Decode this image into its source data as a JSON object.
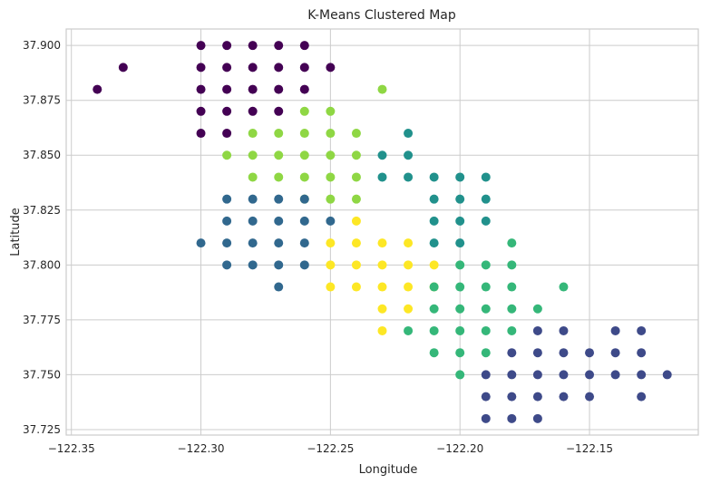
{
  "chart_data": {
    "type": "scatter",
    "title": "K-Means Clustered Map",
    "xlabel": "Longitude",
    "ylabel": "Latitude",
    "xlim": [
      -122.352,
      -122.108
    ],
    "ylim": [
      37.7225,
      37.9075
    ],
    "x_ticks": [
      -122.35,
      -122.3,
      -122.25,
      -122.2,
      -122.15
    ],
    "x_tick_labels": [
      "−122.35",
      "−122.30",
      "−122.25",
      "−122.20",
      "−122.15"
    ],
    "y_ticks": [
      37.725,
      37.75,
      37.775,
      37.8,
      37.825,
      37.85,
      37.875,
      37.9
    ],
    "y_tick_labels": [
      "37.725",
      "37.750",
      "37.775",
      "37.800",
      "37.825",
      "37.850",
      "37.875",
      "37.900"
    ],
    "grid": true,
    "colors": {
      "cluster_0": "#440154",
      "cluster_1": "#3e4a89",
      "cluster_2": "#31688e",
      "cluster_3": "#21918c",
      "cluster_4": "#35b779",
      "cluster_5": "#8fd744",
      "cluster_6": "#fde725",
      "grid": "#cccccc",
      "spine": "#cccccc",
      "text": "#262626"
    },
    "series": [
      {
        "color_key": "cluster_0",
        "points": [
          [
            -122.34,
            37.88
          ],
          [
            -122.33,
            37.89
          ],
          [
            -122.3,
            37.9
          ],
          [
            -122.29,
            37.9
          ],
          [
            -122.28,
            37.9
          ],
          [
            -122.27,
            37.9
          ],
          [
            -122.26,
            37.9
          ],
          [
            -122.3,
            37.89
          ],
          [
            -122.29,
            37.89
          ],
          [
            -122.28,
            37.89
          ],
          [
            -122.27,
            37.89
          ],
          [
            -122.26,
            37.89
          ],
          [
            -122.25,
            37.89
          ],
          [
            -122.3,
            37.88
          ],
          [
            -122.29,
            37.88
          ],
          [
            -122.28,
            37.88
          ],
          [
            -122.27,
            37.88
          ],
          [
            -122.26,
            37.88
          ],
          [
            -122.3,
            37.87
          ],
          [
            -122.29,
            37.87
          ],
          [
            -122.28,
            37.87
          ],
          [
            -122.27,
            37.87
          ],
          [
            -122.3,
            37.86
          ],
          [
            -122.29,
            37.86
          ]
        ]
      },
      {
        "color_key": "cluster_5",
        "points": [
          [
            -122.23,
            37.88
          ],
          [
            -122.26,
            37.87
          ],
          [
            -122.25,
            37.87
          ],
          [
            -122.28,
            37.86
          ],
          [
            -122.27,
            37.86
          ],
          [
            -122.26,
            37.86
          ],
          [
            -122.25,
            37.86
          ],
          [
            -122.24,
            37.86
          ],
          [
            -122.29,
            37.85
          ],
          [
            -122.28,
            37.85
          ],
          [
            -122.27,
            37.85
          ],
          [
            -122.26,
            37.85
          ],
          [
            -122.25,
            37.85
          ],
          [
            -122.24,
            37.85
          ],
          [
            -122.28,
            37.84
          ],
          [
            -122.27,
            37.84
          ],
          [
            -122.26,
            37.84
          ],
          [
            -122.25,
            37.84
          ],
          [
            -122.24,
            37.84
          ],
          [
            -122.26,
            37.83
          ],
          [
            -122.25,
            37.83
          ],
          [
            -122.24,
            37.83
          ]
        ]
      },
      {
        "color_key": "cluster_3",
        "points": [
          [
            -122.22,
            37.86
          ],
          [
            -122.23,
            37.85
          ],
          [
            -122.22,
            37.85
          ],
          [
            -122.23,
            37.84
          ],
          [
            -122.22,
            37.84
          ],
          [
            -122.21,
            37.84
          ],
          [
            -122.2,
            37.84
          ],
          [
            -122.19,
            37.84
          ],
          [
            -122.21,
            37.83
          ],
          [
            -122.2,
            37.83
          ],
          [
            -122.19,
            37.83
          ],
          [
            -122.21,
            37.82
          ],
          [
            -122.2,
            37.82
          ],
          [
            -122.19,
            37.82
          ],
          [
            -122.21,
            37.81
          ],
          [
            -122.2,
            37.81
          ]
        ]
      },
      {
        "color_key": "cluster_2",
        "points": [
          [
            -122.29,
            37.83
          ],
          [
            -122.28,
            37.83
          ],
          [
            -122.27,
            37.83
          ],
          [
            -122.26,
            37.83
          ],
          [
            -122.29,
            37.82
          ],
          [
            -122.28,
            37.82
          ],
          [
            -122.27,
            37.82
          ],
          [
            -122.26,
            37.82
          ],
          [
            -122.25,
            37.82
          ],
          [
            -122.3,
            37.81
          ],
          [
            -122.29,
            37.81
          ],
          [
            -122.28,
            37.81
          ],
          [
            -122.27,
            37.81
          ],
          [
            -122.26,
            37.81
          ],
          [
            -122.29,
            37.8
          ],
          [
            -122.28,
            37.8
          ],
          [
            -122.27,
            37.8
          ],
          [
            -122.26,
            37.8
          ],
          [
            -122.27,
            37.79
          ]
        ]
      },
      {
        "color_key": "cluster_6",
        "points": [
          [
            -122.24,
            37.82
          ],
          [
            -122.25,
            37.81
          ],
          [
            -122.24,
            37.81
          ],
          [
            -122.23,
            37.81
          ],
          [
            -122.22,
            37.81
          ],
          [
            -122.25,
            37.8
          ],
          [
            -122.24,
            37.8
          ],
          [
            -122.23,
            37.8
          ],
          [
            -122.22,
            37.8
          ],
          [
            -122.21,
            37.8
          ],
          [
            -122.25,
            37.79
          ],
          [
            -122.24,
            37.79
          ],
          [
            -122.23,
            37.79
          ],
          [
            -122.22,
            37.79
          ],
          [
            -122.21,
            37.79
          ],
          [
            -122.23,
            37.78
          ],
          [
            -122.22,
            37.78
          ],
          [
            -122.23,
            37.77
          ]
        ]
      },
      {
        "color_key": "cluster_4",
        "points": [
          [
            -122.18,
            37.81
          ],
          [
            -122.2,
            37.8
          ],
          [
            -122.19,
            37.8
          ],
          [
            -122.18,
            37.8
          ],
          [
            -122.21,
            37.79
          ],
          [
            -122.2,
            37.79
          ],
          [
            -122.19,
            37.79
          ],
          [
            -122.18,
            37.79
          ],
          [
            -122.16,
            37.79
          ],
          [
            -122.21,
            37.78
          ],
          [
            -122.2,
            37.78
          ],
          [
            -122.19,
            37.78
          ],
          [
            -122.18,
            37.78
          ],
          [
            -122.17,
            37.78
          ],
          [
            -122.22,
            37.77
          ],
          [
            -122.21,
            37.77
          ],
          [
            -122.2,
            37.77
          ],
          [
            -122.19,
            37.77
          ],
          [
            -122.18,
            37.77
          ],
          [
            -122.21,
            37.76
          ],
          [
            -122.2,
            37.76
          ],
          [
            -122.19,
            37.76
          ],
          [
            -122.2,
            37.75
          ]
        ]
      },
      {
        "color_key": "cluster_1",
        "points": [
          [
            -122.17,
            37.77
          ],
          [
            -122.16,
            37.77
          ],
          [
            -122.14,
            37.77
          ],
          [
            -122.13,
            37.77
          ],
          [
            -122.18,
            37.76
          ],
          [
            -122.17,
            37.76
          ],
          [
            -122.16,
            37.76
          ],
          [
            -122.15,
            37.76
          ],
          [
            -122.14,
            37.76
          ],
          [
            -122.13,
            37.76
          ],
          [
            -122.19,
            37.75
          ],
          [
            -122.18,
            37.75
          ],
          [
            -122.17,
            37.75
          ],
          [
            -122.16,
            37.75
          ],
          [
            -122.15,
            37.75
          ],
          [
            -122.14,
            37.75
          ],
          [
            -122.13,
            37.75
          ],
          [
            -122.12,
            37.75
          ],
          [
            -122.19,
            37.74
          ],
          [
            -122.18,
            37.74
          ],
          [
            -122.17,
            37.74
          ],
          [
            -122.16,
            37.74
          ],
          [
            -122.15,
            37.74
          ],
          [
            -122.13,
            37.74
          ],
          [
            -122.19,
            37.73
          ],
          [
            -122.18,
            37.73
          ],
          [
            -122.17,
            37.73
          ]
        ]
      }
    ]
  }
}
